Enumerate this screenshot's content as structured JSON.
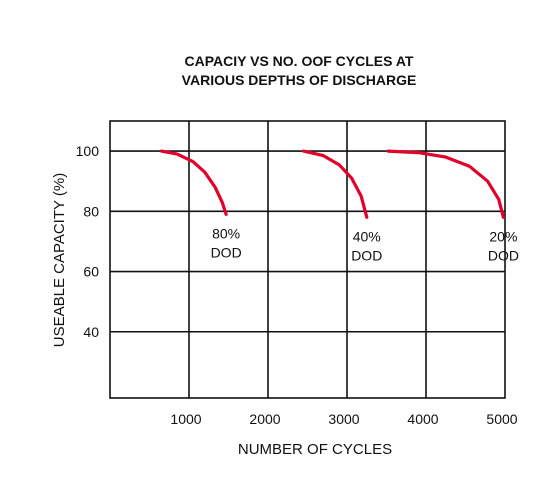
{
  "chart_data": {
    "type": "line",
    "title_lines": [
      "CAPACIY VS NO. OOF CYCLES AT",
      "VARIOUS DEPTHS OF DISCHARGE"
    ],
    "xlabel": "NUMBER OF CYCLES",
    "ylabel": "USEABLE CAPACITY (%)",
    "xlim": [
      0,
      5000
    ],
    "ylim": [
      18,
      110
    ],
    "x_ticks": [
      1000,
      2000,
      3000,
      4000,
      5000
    ],
    "x_tick_labels": [
      "1000",
      "2000",
      "3000",
      "4000",
      "5000"
    ],
    "y_ticks": [
      40,
      60,
      80,
      100
    ],
    "y_tick_labels": [
      "40",
      "60",
      "80",
      "100"
    ],
    "grid": true,
    "legend": "none",
    "line_color": "#e0002a",
    "series": [
      {
        "annotation": [
          "80%",
          "DOD"
        ],
        "x": [
          650,
          850,
          1050,
          1200,
          1330,
          1420,
          1470
        ],
        "y": [
          100,
          99,
          96.5,
          93,
          88,
          83,
          79
        ]
      },
      {
        "annotation": [
          "40%",
          "DOD"
        ],
        "x": [
          2450,
          2700,
          2900,
          3060,
          3180,
          3250
        ],
        "y": [
          100,
          98.5,
          95.5,
          91,
          85,
          78
        ]
      },
      {
        "annotation": [
          "20%",
          "DOD"
        ],
        "x": [
          3520,
          3900,
          4250,
          4550,
          4780,
          4920,
          4980
        ],
        "y": [
          100,
          99.5,
          98,
          95,
          90,
          84,
          78
        ]
      }
    ]
  }
}
